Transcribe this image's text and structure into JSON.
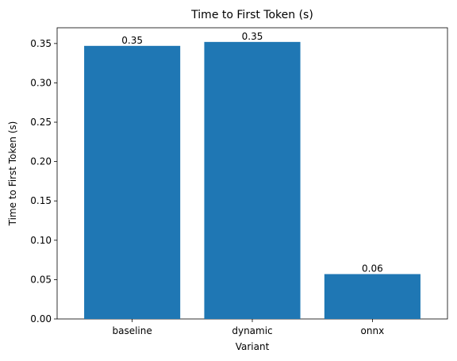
{
  "chart_data": {
    "type": "bar",
    "title": "Time to First Token (s)",
    "xlabel": "Variant",
    "ylabel": "Time to First Token (s)",
    "categories": [
      "baseline",
      "dynamic",
      "onnx"
    ],
    "values": [
      0.347,
      0.352,
      0.057
    ],
    "data_labels": [
      "0.35",
      "0.35",
      "0.06"
    ],
    "ylim": [
      0,
      0.37
    ],
    "yticks": [
      0.0,
      0.05,
      0.1,
      0.15,
      0.2,
      0.25,
      0.3,
      0.35
    ],
    "ytick_labels": [
      "0.00",
      "0.05",
      "0.10",
      "0.15",
      "0.20",
      "0.25",
      "0.30",
      "0.35"
    ],
    "grid": false,
    "bar_color": "#1f77b4"
  }
}
